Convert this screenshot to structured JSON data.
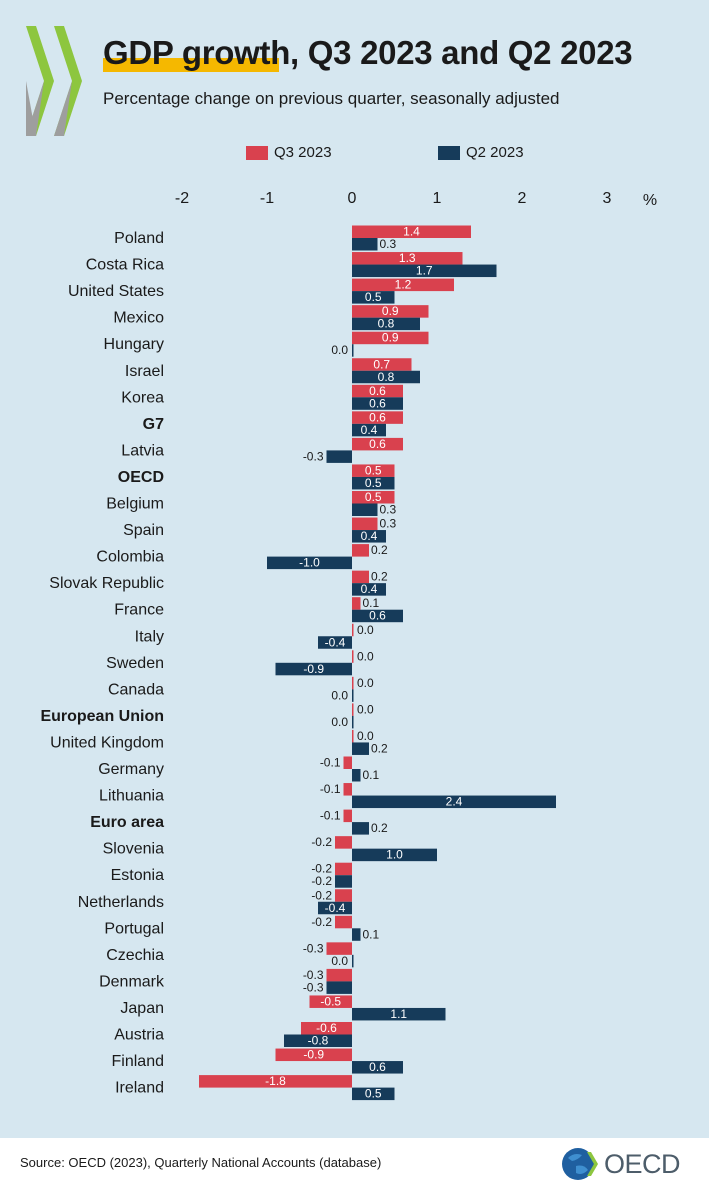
{
  "header": {
    "title": "GDP growth, Q3 2023 and Q2 2023",
    "subtitle": "Percentage change on previous quarter, seasonally adjusted"
  },
  "footer": {
    "source": "Source: OECD (2023), Quarterly National Accounts (database)",
    "logo_text": "OECD"
  },
  "colors": {
    "q3": "#d9414e",
    "q2": "#163b5a",
    "background": "#d6e7f0",
    "accent": "#f5b800"
  },
  "chart_data": {
    "type": "bar",
    "orientation": "horizontal",
    "x_unit": "%",
    "xlim": [
      -2,
      3
    ],
    "x_ticks": [
      -2,
      -1,
      0,
      1,
      2,
      3
    ],
    "tick_labels": [
      "-2",
      "-1",
      "0",
      "1",
      "2",
      "3"
    ],
    "legend_position": "top",
    "categories": [
      "Poland",
      "Costa Rica",
      "United States",
      "Mexico",
      "Hungary",
      "Israel",
      "Korea",
      "G7",
      "Latvia",
      "OECD",
      "Belgium",
      "Spain",
      "Colombia",
      "Slovak Republic",
      "France",
      "Italy",
      "Sweden",
      "Canada",
      "European Union",
      "United Kingdom",
      "Germany",
      "Lithuania",
      "Euro area",
      "Slovenia",
      "Estonia",
      "Netherlands",
      "Portugal",
      "Czechia",
      "Denmark",
      "Japan",
      "Austria",
      "Finland",
      "Ireland"
    ],
    "bold_categories": [
      "G7",
      "OECD",
      "European Union",
      "Euro area"
    ],
    "series": [
      {
        "name": "Q3 2023",
        "values": [
          1.4,
          1.3,
          1.2,
          0.9,
          0.9,
          0.7,
          0.6,
          0.6,
          0.6,
          0.5,
          0.5,
          0.3,
          0.2,
          0.2,
          0.1,
          0.0,
          0.0,
          0.0,
          0.0,
          0.0,
          -0.1,
          -0.1,
          -0.1,
          -0.2,
          -0.2,
          -0.2,
          -0.2,
          -0.3,
          -0.3,
          -0.5,
          -0.6,
          -0.9,
          -1.8
        ],
        "labels": [
          "1.4",
          "1.3",
          "1.2",
          "0.9",
          "0.9",
          "0.7",
          "0.6",
          "0.6",
          "0.6",
          "0.5",
          "0.5",
          "0.3",
          "0.2",
          "0.2",
          "0.1",
          "0.0",
          "0.0",
          "0.0",
          "0.0",
          "0.0",
          "-0.1",
          "-0.1",
          "-0.1",
          "-0.2",
          "-0.2",
          "-0.2",
          "-0.2",
          "-0.3",
          "-0.3",
          "-0.5",
          "-0.6",
          "-0.9",
          "-1.8"
        ]
      },
      {
        "name": "Q2 2023",
        "values": [
          0.3,
          1.7,
          0.5,
          0.8,
          0.0,
          0.8,
          0.6,
          0.4,
          -0.3,
          0.5,
          0.3,
          0.4,
          -1.0,
          0.4,
          0.6,
          -0.4,
          -0.9,
          0.0,
          0.0,
          0.2,
          0.1,
          2.4,
          0.2,
          1.0,
          -0.2,
          -0.4,
          0.1,
          0.0,
          -0.3,
          1.1,
          -0.8,
          0.6,
          0.5
        ],
        "labels": [
          "0.3",
          "1.7",
          "0.5",
          "0.8",
          "0.0",
          "0.8",
          "0.6",
          "0.4",
          "-0.3",
          "0.5",
          "0.3",
          "0.4",
          "-1.0",
          "0.4",
          "0.6",
          "-0.4",
          "-0.9",
          "0.0",
          "0.0",
          "0.2",
          "0.1",
          "2.4",
          "0.2",
          "1.0",
          "-0.2",
          "-0.4",
          "0.1",
          "0.0",
          "-0.3",
          "1.1",
          "-0.8",
          "0.6",
          "0.5"
        ]
      }
    ]
  }
}
